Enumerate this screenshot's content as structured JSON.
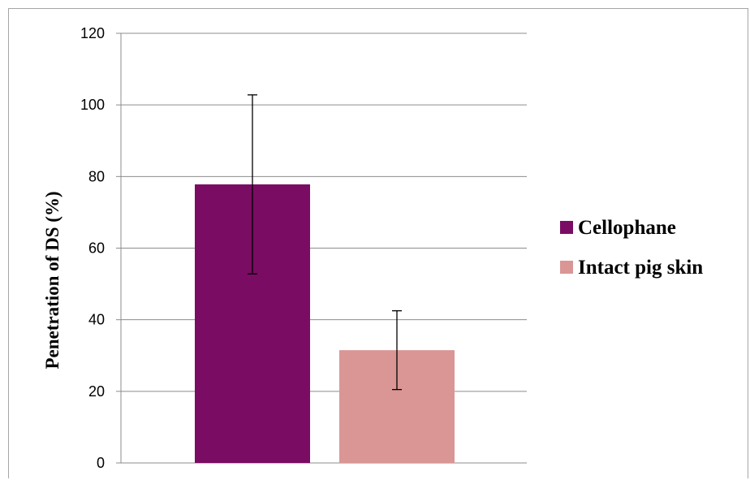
{
  "chart_data": {
    "type": "bar",
    "title": "",
    "xlabel": "",
    "ylabel": "Penetration of DS (%)",
    "ylim": [
      0,
      120
    ],
    "yticks": [
      0,
      20,
      40,
      60,
      80,
      100,
      120
    ],
    "grid": true,
    "legend_position": "right",
    "series": [
      {
        "name": "Cellophane",
        "color": "#7b0c64",
        "value": 77.8,
        "error": 25
      },
      {
        "name": "Intact pig skin",
        "color": "#d99695",
        "value": 31.5,
        "error": 11
      }
    ]
  }
}
